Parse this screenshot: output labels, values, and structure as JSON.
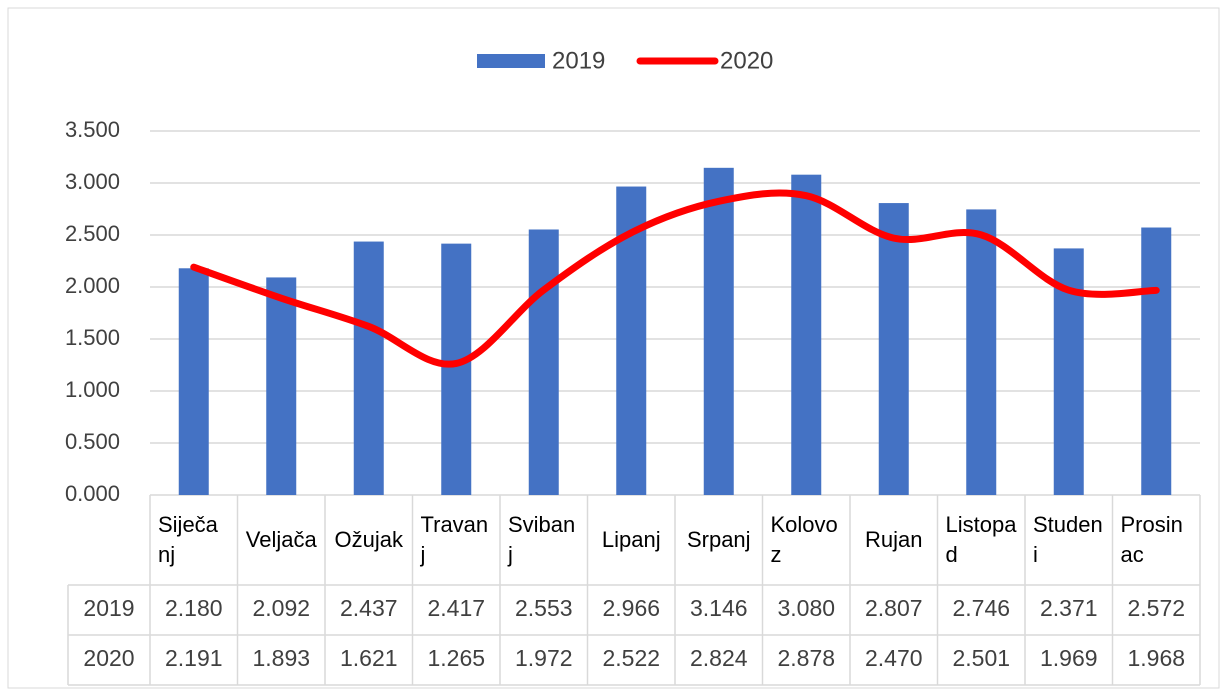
{
  "chart_data": {
    "type": "bar-line",
    "categories": [
      "Siječanj",
      "Veljača",
      "Ožujak",
      "Travanj",
      "Svibanj",
      "Lipanj",
      "Srpanj",
      "Kolovoz",
      "Rujan",
      "Listopad",
      "Studeni",
      "Prosinac"
    ],
    "series": [
      {
        "name": "2019",
        "type": "bar",
        "color": "#4472c4",
        "values": [
          2180,
          2092,
          2437,
          2417,
          2553,
          2966,
          3146,
          3080,
          2807,
          2746,
          2371,
          2572
        ],
        "value_labels": [
          "2.180",
          "2.092",
          "2.437",
          "2.417",
          "2.553",
          "2.966",
          "3.146",
          "3.080",
          "2.807",
          "2.746",
          "2.371",
          "2.572"
        ]
      },
      {
        "name": "2020",
        "type": "line",
        "color": "#ff0000",
        "smooth": true,
        "values": [
          2191,
          1893,
          1621,
          1265,
          1972,
          2522,
          2824,
          2878,
          2470,
          2501,
          1969,
          1968
        ],
        "value_labels": [
          "2.191",
          "1.893",
          "1.621",
          "1.265",
          "1.972",
          "2.522",
          "2.824",
          "2.878",
          "2.470",
          "2.501",
          "1.969",
          "1.968"
        ]
      }
    ],
    "ylim": [
      0,
      3500
    ],
    "yticks": [
      {
        "value": 0,
        "label": "0.000"
      },
      {
        "value": 500,
        "label": "0.500"
      },
      {
        "value": 1000,
        "label": "1.000"
      },
      {
        "value": 1500,
        "label": "1.500"
      },
      {
        "value": 2000,
        "label": "2.000"
      },
      {
        "value": 2500,
        "label": "2.500"
      },
      {
        "value": 3000,
        "label": "3.000"
      },
      {
        "value": 3500,
        "label": "3.500"
      }
    ],
    "grid": true,
    "legend": "top",
    "data_table": true
  }
}
